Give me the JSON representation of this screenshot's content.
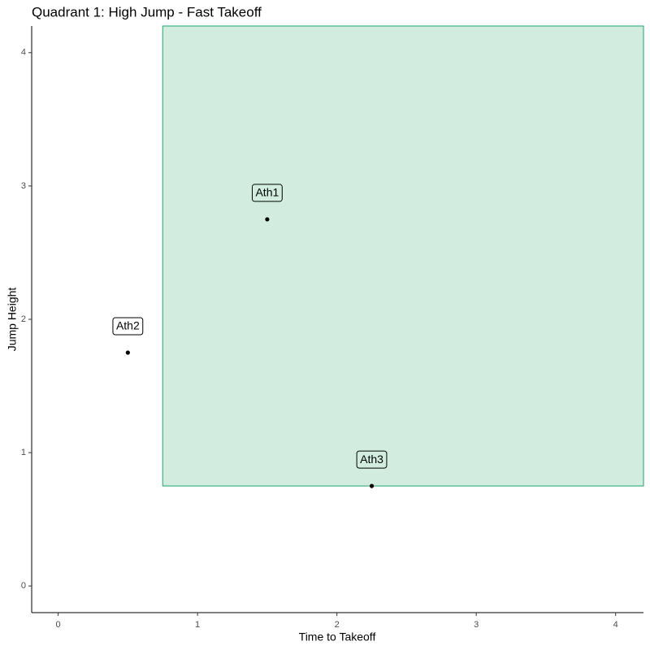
{
  "chart_data": {
    "type": "scatter",
    "title": "Quadrant 1: High Jump - Fast Takeoff",
    "xlabel": "Time to Takeoff",
    "ylabel": "Jump Height",
    "x": [
      1.5,
      0.5,
      2.25
    ],
    "y": [
      2.75,
      1.75,
      0.75
    ],
    "labels": [
      "Ath1",
      "Ath2",
      "Ath3"
    ],
    "color": "#000000",
    "region": {
      "xlim": [
        0.75,
        4.2
      ],
      "ylim": [
        0.75,
        4.2
      ],
      "fill": "#d2ede0",
      "stroke": "#1ea86a"
    },
    "xlim": [
      -0.19,
      4.2
    ],
    "ylim": [
      -0.2,
      4.2
    ],
    "xticks": [
      0,
      1,
      2,
      3,
      4
    ],
    "yticks": [
      0,
      1,
      2,
      3,
      4
    ],
    "grid": false
  }
}
